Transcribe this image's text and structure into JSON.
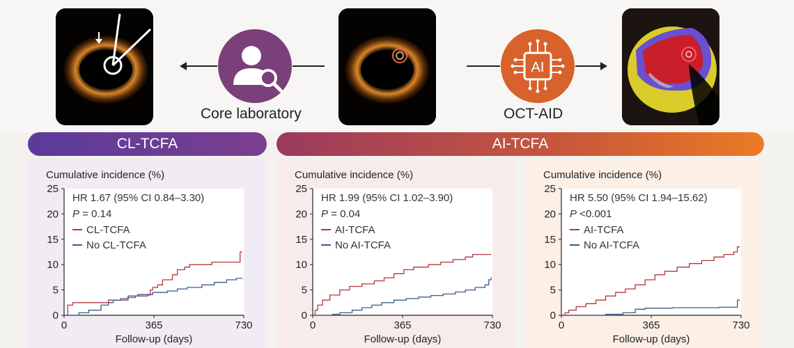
{
  "top": {
    "core_lab_label": "Core laboratory",
    "oct_aid_label": "OCT-AID",
    "ai_chip_text": "AI"
  },
  "banners": {
    "left": "CL-TCFA",
    "right": "AI-TCFA"
  },
  "colors": {
    "event_series": "#b5363c",
    "no_event_series": "#3b5a8c",
    "left_banner": "#6b3fa0",
    "right_banner_start": "#9b3a5e",
    "right_banner_end": "#ec7a24"
  },
  "chart_data": [
    {
      "type": "line",
      "title": "",
      "ylabel": "Cumulative incidence (%)",
      "xlabel": "Follow-up (days)",
      "xlim": [
        0,
        730
      ],
      "ylim": [
        0,
        25
      ],
      "x_ticks": [
        "0",
        "365",
        "730"
      ],
      "y_ticks": [
        "0",
        "5",
        "10",
        "15",
        "20",
        "25"
      ],
      "hr_text": "HR 1.67 (95% CI 0.84–3.30)",
      "p_label": "P",
      "p_value": " = 0.14",
      "series": [
        {
          "name": "CL-TCFA",
          "color": "#b5363c",
          "points": [
            [
              0,
              0
            ],
            [
              15,
              2
            ],
            [
              30,
              2
            ],
            [
              35,
              2.5
            ],
            [
              120,
              2.5
            ],
            [
              180,
              3
            ],
            [
              230,
              3
            ],
            [
              260,
              3.5
            ],
            [
              290,
              3.8
            ],
            [
              340,
              4
            ],
            [
              350,
              5
            ],
            [
              360,
              5.5
            ],
            [
              380,
              6
            ],
            [
              400,
              7
            ],
            [
              440,
              8
            ],
            [
              460,
              9
            ],
            [
              490,
              9.5
            ],
            [
              510,
              10
            ],
            [
              590,
              10
            ],
            [
              600,
              10.5
            ],
            [
              710,
              10.5
            ],
            [
              715,
              12.5
            ],
            [
              725,
              12.5
            ]
          ]
        },
        {
          "name": "No CL-TCFA",
          "color": "#3b5a8c",
          "points": [
            [
              0,
              0
            ],
            [
              60,
              0.5
            ],
            [
              100,
              1
            ],
            [
              150,
              2
            ],
            [
              180,
              2.5
            ],
            [
              200,
              3
            ],
            [
              230,
              3.3
            ],
            [
              260,
              3.8
            ],
            [
              300,
              4.1
            ],
            [
              360,
              4.5
            ],
            [
              420,
              4.8
            ],
            [
              460,
              5.2
            ],
            [
              500,
              5.5
            ],
            [
              560,
              6
            ],
            [
              610,
              6.5
            ],
            [
              660,
              7
            ],
            [
              700,
              7.3
            ],
            [
              725,
              7.3
            ]
          ]
        }
      ]
    },
    {
      "type": "line",
      "title": "",
      "ylabel": "Cumulative incidence (%)",
      "xlabel": "Follow-up (days)",
      "xlim": [
        0,
        730
      ],
      "ylim": [
        0,
        25
      ],
      "x_ticks": [
        "0",
        "365",
        "730"
      ],
      "y_ticks": [
        "0",
        "5",
        "10",
        "15",
        "20",
        "25"
      ],
      "hr_text": "HR 1.99 (95% CI 1.02–3.90)",
      "p_label": "P",
      "p_value": " = 0.04",
      "series": [
        {
          "name": "AI-TCFA",
          "color": "#b5363c",
          "points": [
            [
              0,
              0
            ],
            [
              10,
              1
            ],
            [
              20,
              2
            ],
            [
              40,
              3
            ],
            [
              70,
              4
            ],
            [
              110,
              5
            ],
            [
              150,
              5.7
            ],
            [
              200,
              6.2
            ],
            [
              250,
              6.8
            ],
            [
              290,
              7.4
            ],
            [
              330,
              8.2
            ],
            [
              370,
              9
            ],
            [
              410,
              9.5
            ],
            [
              470,
              10
            ],
            [
              520,
              10.5
            ],
            [
              570,
              11
            ],
            [
              620,
              11.5
            ],
            [
              650,
              12
            ],
            [
              725,
              12
            ]
          ]
        },
        {
          "name": "No AI-TCFA",
          "color": "#3b5a8c",
          "points": [
            [
              0,
              0
            ],
            [
              80,
              0.2
            ],
            [
              110,
              0.5
            ],
            [
              160,
              1
            ],
            [
              200,
              1.5
            ],
            [
              240,
              2
            ],
            [
              280,
              2.5
            ],
            [
              330,
              3
            ],
            [
              380,
              3.3
            ],
            [
              430,
              3.6
            ],
            [
              480,
              3.9
            ],
            [
              530,
              4.2
            ],
            [
              580,
              4.6
            ],
            [
              620,
              5
            ],
            [
              660,
              5.5
            ],
            [
              700,
              6
            ],
            [
              715,
              7
            ],
            [
              725,
              7.5
            ]
          ]
        }
      ]
    },
    {
      "type": "line",
      "title": "",
      "ylabel": "Cumulative incidence (%)",
      "xlabel": "Follow-up (days)",
      "xlim": [
        0,
        730
      ],
      "ylim": [
        0,
        25
      ],
      "x_ticks": [
        "0",
        "365",
        "730"
      ],
      "y_ticks": [
        "0",
        "5",
        "10",
        "15",
        "20",
        "25"
      ],
      "hr_text": "HR 5.50 (95% CI 1.94–15.62)",
      "p_label": "P",
      "p_value": " <0.001",
      "series": [
        {
          "name": "AI-TCFA",
          "color": "#b5363c",
          "points": [
            [
              0,
              0
            ],
            [
              15,
              0.5
            ],
            [
              30,
              1
            ],
            [
              60,
              1.7
            ],
            [
              100,
              2.3
            ],
            [
              140,
              3
            ],
            [
              180,
              3.8
            ],
            [
              220,
              4.5
            ],
            [
              260,
              5.2
            ],
            [
              300,
              6
            ],
            [
              340,
              7
            ],
            [
              380,
              8
            ],
            [
              420,
              8.7
            ],
            [
              470,
              9.5
            ],
            [
              520,
              10.2
            ],
            [
              570,
              10.8
            ],
            [
              620,
              11.5
            ],
            [
              660,
              12
            ],
            [
              700,
              12.5
            ],
            [
              715,
              13.5
            ],
            [
              725,
              13.5
            ]
          ]
        },
        {
          "name": "No AI-TCFA",
          "color": "#3b5a8c",
          "points": [
            [
              0,
              0
            ],
            [
              180,
              0.2
            ],
            [
              250,
              0.5
            ],
            [
              300,
              1.2
            ],
            [
              340,
              1.4
            ],
            [
              450,
              1.5
            ],
            [
              560,
              1.5
            ],
            [
              640,
              1.6
            ],
            [
              705,
              1.6
            ],
            [
              715,
              3
            ],
            [
              725,
              3
            ]
          ]
        }
      ]
    }
  ]
}
